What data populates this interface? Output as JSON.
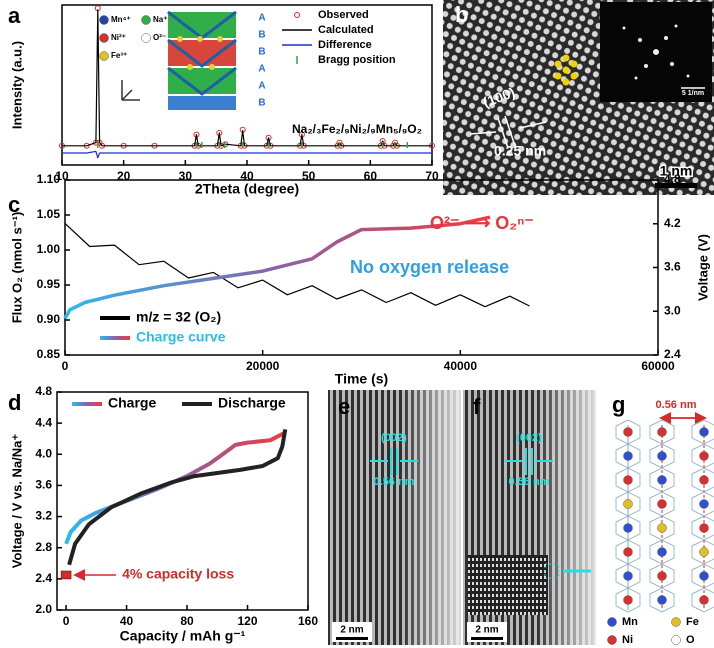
{
  "chart_data": [
    {
      "type": "line",
      "panel_label": "a",
      "xlabel": "2Theta (degree)",
      "ylabel": "Intensity (a.u.)",
      "xlim": [
        10,
        70
      ],
      "xticks": [
        10,
        20,
        30,
        40,
        50,
        60,
        70
      ],
      "ylim": [
        0,
        100
      ],
      "x": [
        10,
        14,
        15.5,
        15.8,
        16.1,
        16.5,
        20,
        25,
        31.5,
        31.8,
        32.1,
        35.2,
        35.5,
        35.8,
        36.5,
        39,
        39.3,
        39.6,
        43.2,
        43.5,
        43.8,
        48.6,
        48.9,
        49.2,
        54.7,
        55,
        55.3,
        61.7,
        62,
        62.3,
        63.7,
        64,
        64.3,
        70
      ],
      "series": [
        {
          "name": "Observed",
          "color": "#e3262b",
          "marker": "circle",
          "values": [
            12,
            12,
            14,
            98,
            14,
            12,
            12,
            12,
            12,
            19,
            12,
            12,
            20,
            12,
            13,
            12,
            22,
            12,
            12,
            17,
            12,
            12,
            19,
            12,
            12,
            14,
            12,
            12,
            15,
            12,
            12,
            14,
            12,
            12
          ]
        },
        {
          "name": "Calculated",
          "color": "#000000",
          "values": [
            12,
            12,
            14,
            97,
            14,
            12,
            12,
            12,
            12,
            19,
            12,
            12,
            20,
            12,
            13,
            12,
            21.5,
            12,
            12,
            17,
            12,
            12,
            19,
            12,
            12,
            14,
            12,
            12,
            15,
            12,
            12,
            14,
            12,
            12
          ]
        },
        {
          "name": "Difference",
          "color": "#1c2fd6",
          "values": [
            7.5,
            7.5,
            8.5,
            4.5,
            7.5,
            7.5,
            7.5,
            7.5,
            7.5,
            7.5,
            7.5,
            7.5,
            7.5,
            7.5,
            7.5,
            7.5,
            7.5,
            7.5,
            7.5,
            7.5,
            7.5,
            7.5,
            7.5,
            7.5,
            7.5,
            7.5,
            7.5,
            7.5,
            7.5,
            7.5,
            7.5,
            7.5,
            7.5,
            7.5
          ]
        }
      ],
      "bragg": {
        "name": "Bragg position",
        "color": "#29a845",
        "x": [
          15.8,
          31.8,
          32.7,
          35.5,
          36.4,
          39.3,
          43.5,
          48.9,
          55,
          62,
          64,
          66
        ]
      },
      "legend": "upper right",
      "formula": "Na₂/₃Fe₂/₉Ni₂/₉Mn₅/₉O₂",
      "structure_legend": [
        "Mn⁴⁺",
        "Na⁺",
        "Ni²⁺",
        "O²⁻",
        "Fe³⁺"
      ],
      "stacking": [
        "A",
        "B",
        "B",
        "A",
        "A",
        "B"
      ]
    },
    {
      "type": "line",
      "panel_label": "c",
      "xlabel": "Time (s)",
      "ylabel": "Flux O₂ (nmol s⁻¹)",
      "y2label": "Voltage (V)",
      "xlim": [
        0,
        60000
      ],
      "xticks": [
        0,
        20000,
        40000,
        60000
      ],
      "ylim": [
        0.85,
        1.1
      ],
      "yticks": [
        0.85,
        {
          "value": 0.9,
          "label": "0.90"
        },
        0.95,
        {
          "value": 1,
          "label": "1.00"
        },
        1.05,
        {
          "value": 1.1,
          "label": "1.10"
        }
      ],
      "y2lim": [
        2.4,
        4.8
      ],
      "y2ticks": [
        2.4,
        {
          "value": 3,
          "label": "3.0"
        },
        3.6,
        4.2,
        4.8
      ],
      "series": [
        {
          "name": "m/z = 32 (O₂)",
          "color": "#000000",
          "x": [
            0,
            2500,
            5000,
            7500,
            10000,
            12500,
            15000,
            17500,
            20000,
            22500,
            25000,
            27500,
            30000,
            32500,
            35000,
            37500,
            40000,
            42500,
            45000,
            47000
          ],
          "values": [
            1.038,
            1.005,
            1.007,
            0.979,
            0.984,
            0.96,
            0.968,
            0.946,
            0.957,
            0.936,
            0.949,
            0.93,
            0.943,
            0.925,
            0.939,
            0.921,
            0.936,
            0.919,
            0.934,
            0.92
          ]
        },
        {
          "name": "Charge curve",
          "axis": "y2",
          "colors": [
            "#2bbbee",
            "#8a62a8",
            "#ef3b3f"
          ],
          "x": [
            0,
            500,
            2000,
            5000,
            10000,
            15000,
            20000,
            25000,
            27500,
            30000,
            35000,
            40000,
            43000
          ],
          "values": [
            2.9,
            3.02,
            3.12,
            3.22,
            3.35,
            3.45,
            3.55,
            3.72,
            3.95,
            4.12,
            4.14,
            4.2,
            4.29
          ]
        }
      ],
      "legend": "lower left",
      "annotations": [
        {
          "text": "O²⁻ ⟶ O₂ⁿ⁻",
          "color": "#e8343a"
        },
        {
          "text": "No oxygen release",
          "color": "#2e9fe6"
        }
      ]
    },
    {
      "type": "line",
      "panel_label": "d",
      "xlabel": "Capacity / mAh g⁻¹",
      "ylabel": "Voltage / V vs. Na/Na⁺",
      "xlim": [
        -6,
        160
      ],
      "xticks": [
        0,
        40,
        80,
        120,
        160
      ],
      "ylim": [
        2,
        4.8
      ],
      "yticks": [
        {
          "value": 2,
          "label": "2.0"
        },
        2.4,
        2.8,
        3.2,
        3.6,
        {
          "value": 4,
          "label": "4.0"
        },
        4.4,
        4.8
      ],
      "series": [
        {
          "name": "Charge",
          "colors": [
            "#2bbbee",
            "#8a62a8",
            "#ef3b3f"
          ],
          "x": [
            0,
            3,
            10,
            20,
            40,
            60,
            80,
            95,
            105,
            112,
            120,
            135,
            145
          ],
          "values": [
            2.85,
            3,
            3.15,
            3.25,
            3.4,
            3.55,
            3.72,
            3.88,
            4.02,
            4.12,
            4.15,
            4.18,
            4.28
          ]
        },
        {
          "name": "Discharge",
          "color": "#222222",
          "x": [
            145,
            143,
            140,
            130,
            115,
            100,
            85,
            70,
            50,
            30,
            15,
            6,
            2
          ],
          "values": [
            4.32,
            4.1,
            3.95,
            3.85,
            3.8,
            3.76,
            3.72,
            3.64,
            3.5,
            3.32,
            3.1,
            2.85,
            2.58
          ]
        }
      ],
      "legend": "upper left",
      "annotation": {
        "text": "4% capacity loss",
        "x": 0,
        "y": 2.45,
        "color": "#d42a2a"
      }
    }
  ],
  "images": {
    "b": {
      "label": "b",
      "plane": "(100)",
      "spacing": "0.25 nm",
      "scale": "1 nm",
      "inset_scale": "5 1/nm"
    },
    "e": {
      "label": "e",
      "plane": "(002)",
      "spacing": "0.56 nm",
      "scale": "2 nm"
    },
    "f": {
      "label": "f",
      "plane": "(002)",
      "spacing": "0.56 nm",
      "scale": "2 nm"
    },
    "g": {
      "label": "g",
      "spacing": "0.56 nm",
      "legend": [
        "Mn",
        "Fe",
        "Ni",
        "O"
      ]
    }
  }
}
